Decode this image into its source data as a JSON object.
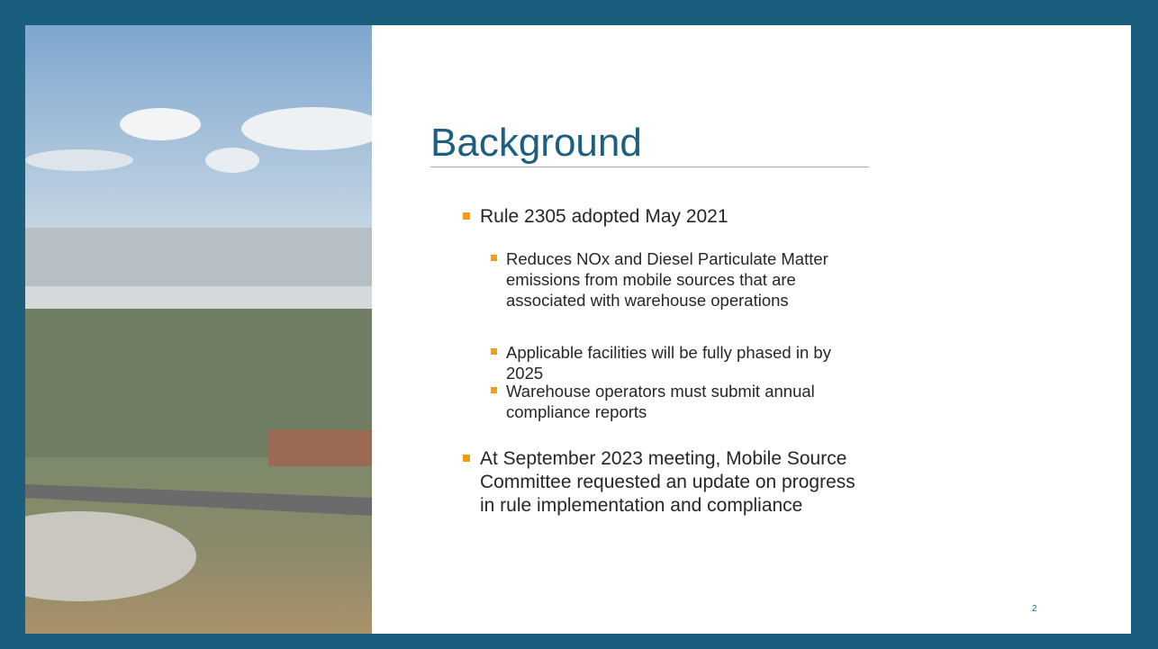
{
  "slide": {
    "title": "Background",
    "bullets": [
      {
        "text": "Rule 2305 adopted May 2021",
        "children": [
          "Reduces NOx and Diesel Particulate Matter emissions from mobile sources that are associated with warehouse operations",
          "Applicable facilities will be fully phased in by 2025",
          "Warehouse operators must submit annual compliance reports"
        ]
      },
      {
        "text": "At September 2023 meeting, Mobile Source Committee requested an update on progress in rule implementation and compliance",
        "children": []
      }
    ],
    "page_number": "2"
  }
}
